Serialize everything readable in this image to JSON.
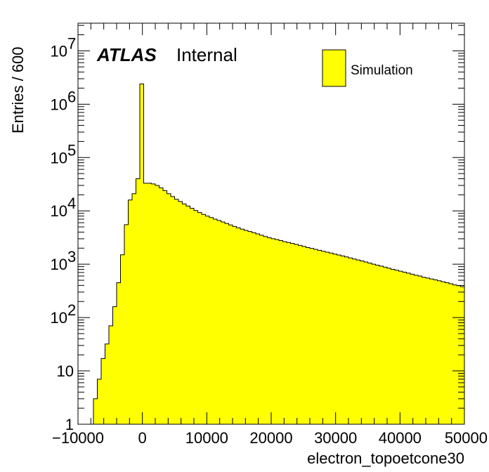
{
  "chart_data": {
    "type": "bar",
    "histogram": true,
    "xlabel": "electron_topoetcone30",
    "ylabel": "Entries / 600",
    "xlim": [
      -10000,
      50000
    ],
    "ylim": [
      1,
      33000000.0
    ],
    "y_scale": "log",
    "grid": false,
    "legend_position": "top-right",
    "fill_color": "#ffff00",
    "line_color": "#000000",
    "label_main": "ATLAS",
    "label_sub": "Internal",
    "series": [
      {
        "name": "Simulation",
        "bin_width": 600,
        "bins": [
          [
            -10000,
            1
          ],
          [
            -9400,
            1
          ],
          [
            -8800,
            1
          ],
          [
            -8200,
            1
          ],
          [
            -7600,
            3
          ],
          [
            -7000,
            7
          ],
          [
            -6400,
            17
          ],
          [
            -5800,
            32
          ],
          [
            -5200,
            70
          ],
          [
            -4600,
            160
          ],
          [
            -4000,
            450
          ],
          [
            -3400,
            1500
          ],
          [
            -2800,
            5500
          ],
          [
            -2200,
            16000
          ],
          [
            -1600,
            21000
          ],
          [
            -1000,
            40000
          ],
          [
            -400,
            2400000
          ],
          [
            200,
            33000
          ],
          [
            800,
            33000
          ],
          [
            1400,
            32000
          ],
          [
            2000,
            30000
          ],
          [
            2600,
            27000
          ],
          [
            3200,
            24000
          ],
          [
            3800,
            21000
          ],
          [
            4400,
            18500
          ],
          [
            5000,
            16500
          ],
          [
            5600,
            15000
          ],
          [
            6200,
            13500
          ],
          [
            6800,
            12300
          ],
          [
            7400,
            11200
          ],
          [
            8000,
            10200
          ],
          [
            8600,
            9300
          ],
          [
            9200,
            8600
          ],
          [
            9800,
            8000
          ],
          [
            10400,
            7500
          ],
          [
            11000,
            7000
          ],
          [
            11600,
            6600
          ],
          [
            12200,
            6200
          ],
          [
            12800,
            5800
          ],
          [
            13400,
            5450
          ],
          [
            14000,
            5100
          ],
          [
            14600,
            4800
          ],
          [
            15200,
            4550
          ],
          [
            15800,
            4300
          ],
          [
            16400,
            4100
          ],
          [
            17000,
            3900
          ],
          [
            17600,
            3700
          ],
          [
            18200,
            3500
          ],
          [
            18800,
            3300
          ],
          [
            19400,
            3150
          ],
          [
            20000,
            3000
          ],
          [
            20600,
            2900
          ],
          [
            21200,
            2780
          ],
          [
            21800,
            2650
          ],
          [
            22400,
            2550
          ],
          [
            23000,
            2450
          ],
          [
            23600,
            2350
          ],
          [
            24200,
            2250
          ],
          [
            24800,
            2150
          ],
          [
            25400,
            2050
          ],
          [
            26000,
            1980
          ],
          [
            26600,
            1900
          ],
          [
            27200,
            1820
          ],
          [
            27800,
            1750
          ],
          [
            28400,
            1680
          ],
          [
            29000,
            1620
          ],
          [
            29600,
            1550
          ],
          [
            30200,
            1490
          ],
          [
            30800,
            1430
          ],
          [
            31400,
            1370
          ],
          [
            32000,
            1310
          ],
          [
            32600,
            1250
          ],
          [
            33200,
            1200
          ],
          [
            33800,
            1150
          ],
          [
            34400,
            1100
          ],
          [
            35000,
            1050
          ],
          [
            35600,
            1000
          ],
          [
            36200,
            960
          ],
          [
            36800,
            920
          ],
          [
            37400,
            880
          ],
          [
            38000,
            840
          ],
          [
            38600,
            800
          ],
          [
            39200,
            770
          ],
          [
            39800,
            740
          ],
          [
            40400,
            710
          ],
          [
            41000,
            680
          ],
          [
            41600,
            650
          ],
          [
            42200,
            620
          ],
          [
            42800,
            600
          ],
          [
            43400,
            570
          ],
          [
            44000,
            550
          ],
          [
            44600,
            530
          ],
          [
            45200,
            510
          ],
          [
            45800,
            490
          ],
          [
            46400,
            470
          ],
          [
            47000,
            450
          ],
          [
            47600,
            430
          ],
          [
            48200,
            410
          ],
          [
            48800,
            395
          ],
          [
            49400,
            380
          ]
        ]
      }
    ],
    "x_ticks": [
      {
        "value": -10000,
        "label": "−10000"
      },
      {
        "value": 0,
        "label": "0"
      },
      {
        "value": 10000,
        "label": "10000"
      },
      {
        "value": 20000,
        "label": "20000"
      },
      {
        "value": 30000,
        "label": "30000"
      },
      {
        "value": 40000,
        "label": "40000"
      },
      {
        "value": 50000,
        "label": "50000"
      }
    ],
    "y_ticks": [
      {
        "value": 1,
        "base": "1",
        "exp": ""
      },
      {
        "value": 10,
        "base": "10",
        "exp": ""
      },
      {
        "value": 100,
        "base": "10",
        "exp": "2"
      },
      {
        "value": 1000,
        "base": "10",
        "exp": "3"
      },
      {
        "value": 10000,
        "base": "10",
        "exp": "4"
      },
      {
        "value": 100000,
        "base": "10",
        "exp": "5"
      },
      {
        "value": 1000000,
        "base": "10",
        "exp": "6"
      },
      {
        "value": 10000000,
        "base": "10",
        "exp": "7"
      }
    ]
  }
}
